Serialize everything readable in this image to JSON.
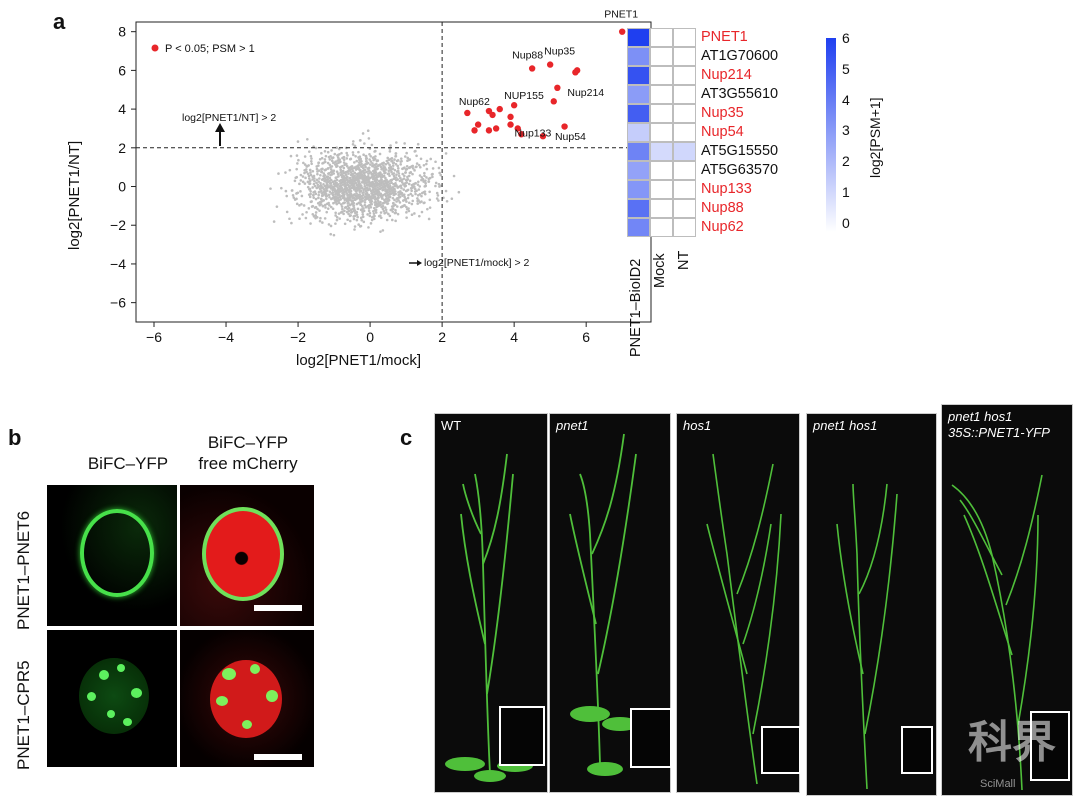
{
  "panel_a": {
    "label": "a",
    "legend_text": "P < 0.05; PSM > 1",
    "xlabel": "log2[PNET1/mock]",
    "ylabel": "log2[PNET1/NT]",
    "threshold_y_text": "log2[PNET1/NT] > 2",
    "threshold_x_text": "log2[PNET1/mock] > 2",
    "chart_data": {
      "type": "scatter",
      "xlim": [
        -6.5,
        7.8
      ],
      "ylim": [
        -7,
        8.5
      ],
      "xticks": [
        -6,
        -4,
        -2,
        0,
        2,
        4,
        6
      ],
      "yticks": [
        -6,
        -4,
        -2,
        0,
        2,
        4,
        6,
        8
      ],
      "vline": 2,
      "hline": 2,
      "background_points": "~2000 grey proteins centered near (0, 0)",
      "labeled_points": [
        {
          "name": "PNET1",
          "x": 7.0,
          "y": 8.0
        },
        {
          "name": "Nup35",
          "x": 5.0,
          "y": 6.3
        },
        {
          "name": "Nup88",
          "x": 4.5,
          "y": 6.1
        },
        {
          "name": "Nup214",
          "x": 5.2,
          "y": 5.1
        },
        {
          "name": "NUP155",
          "x": 4.0,
          "y": 4.2
        },
        {
          "name": "Nup62",
          "x": 3.3,
          "y": 3.9
        },
        {
          "name": "Nup133",
          "x": 3.9,
          "y": 3.2
        },
        {
          "name": "Nup54",
          "x": 4.8,
          "y": 2.6
        }
      ],
      "other_significant_points": [
        {
          "x": 5.7,
          "y": 5.9
        },
        {
          "x": 5.75,
          "y": 6.0
        },
        {
          "x": 5.1,
          "y": 4.4
        },
        {
          "x": 3.4,
          "y": 3.7
        },
        {
          "x": 3.6,
          "y": 4.0
        },
        {
          "x": 2.7,
          "y": 3.8
        },
        {
          "x": 3.0,
          "y": 3.2
        },
        {
          "x": 2.9,
          "y": 2.9
        },
        {
          "x": 3.3,
          "y": 2.9
        },
        {
          "x": 3.5,
          "y": 3.0
        },
        {
          "x": 4.1,
          "y": 3.0
        },
        {
          "x": 4.2,
          "y": 2.7
        },
        {
          "x": 5.4,
          "y": 3.1
        },
        {
          "x": 3.9,
          "y": 3.6
        }
      ]
    }
  },
  "heatmap": {
    "rows": [
      {
        "label": "PNET1",
        "color": "#e8262a",
        "values": [
          6.2,
          0,
          0
        ]
      },
      {
        "label": "AT1G70600",
        "color": "#111111",
        "values": [
          3.6,
          0,
          0
        ]
      },
      {
        "label": "Nup214",
        "color": "#e8262a",
        "values": [
          5.6,
          0,
          0
        ]
      },
      {
        "label": "AT3G55610",
        "color": "#111111",
        "values": [
          3.2,
          0,
          0
        ]
      },
      {
        "label": "Nup35",
        "color": "#e8262a",
        "values": [
          5.2,
          0,
          0
        ]
      },
      {
        "label": "Nup54",
        "color": "#e8262a",
        "values": [
          1.6,
          0,
          0
        ]
      },
      {
        "label": "AT5G15550",
        "color": "#111111",
        "values": [
          4.0,
          1.2,
          1.3
        ]
      },
      {
        "label": "AT5G63570",
        "color": "#111111",
        "values": [
          3.0,
          0,
          0
        ]
      },
      {
        "label": "Nup133",
        "color": "#e8262a",
        "values": [
          3.4,
          0,
          0
        ]
      },
      {
        "label": "Nup88",
        "color": "#e8262a",
        "values": [
          4.6,
          0,
          0
        ]
      },
      {
        "label": "Nup62",
        "color": "#e8262a",
        "values": [
          3.9,
          0,
          0
        ]
      }
    ],
    "columns": [
      "PNET1–BioID2",
      "Mock",
      "NT"
    ],
    "colorbar_label": "log2[PSM+1]",
    "colorbar_ticks": [
      "6",
      "5",
      "4",
      "3",
      "2",
      "1",
      "0"
    ],
    "low_color": "#ffffff",
    "high_color": "#1f3ff0"
  },
  "panel_b": {
    "label": "b",
    "col_headers": [
      "BiFC–YFP",
      "BiFC–YFP\nfree mCherry"
    ],
    "row_labels": [
      "PNET1–PNET6",
      "PNET1–CPR5"
    ]
  },
  "panel_c": {
    "label": "c",
    "genotypes": [
      "WT",
      "pnet1",
      "hos1",
      "pnet1 hos1",
      "pnet1 hos1\n35S::PNET1-YFP"
    ]
  },
  "watermark": {
    "text": "科界",
    "sub": "SciMall"
  }
}
